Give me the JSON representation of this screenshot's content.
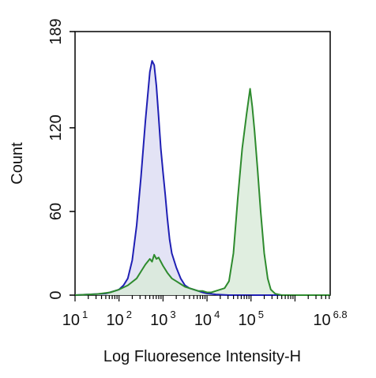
{
  "chart_data": {
    "type": "area",
    "xlabel": "Log Fluoresence Intensity-H",
    "ylabel": "Count",
    "x_scale": "log10",
    "xlim": [
      1,
      6.8
    ],
    "ylim": [
      0,
      189
    ],
    "y_ticks": [
      {
        "value": 0,
        "label": "0"
      },
      {
        "value": 60,
        "label": "60"
      },
      {
        "value": 120,
        "label": "120"
      },
      {
        "value": 189,
        "label": "189"
      }
    ],
    "x_ticks": [
      {
        "value": 1,
        "base": "10",
        "exp": "1"
      },
      {
        "value": 2,
        "base": "10",
        "exp": "2"
      },
      {
        "value": 3,
        "base": "10",
        "exp": "3"
      },
      {
        "value": 4,
        "base": "10",
        "exp": "4"
      },
      {
        "value": 5,
        "base": "10",
        "exp": "5"
      },
      {
        "value": 6.8,
        "base": "10",
        "exp": "6.8"
      }
    ],
    "grid": false,
    "legend": "none",
    "series": [
      {
        "color": "#1f1fb4",
        "fill": "#dcdcf2",
        "points": [
          [
            1.0,
            0
          ],
          [
            1.3,
            0.5
          ],
          [
            1.5,
            0.8
          ],
          [
            1.7,
            1.2
          ],
          [
            1.9,
            3
          ],
          [
            2.0,
            4
          ],
          [
            2.1,
            7
          ],
          [
            2.2,
            12
          ],
          [
            2.3,
            25
          ],
          [
            2.4,
            50
          ],
          [
            2.5,
            85
          ],
          [
            2.6,
            125
          ],
          [
            2.7,
            160
          ],
          [
            2.75,
            168
          ],
          [
            2.8,
            165
          ],
          [
            2.85,
            150
          ],
          [
            2.9,
            128
          ],
          [
            2.95,
            105
          ],
          [
            3.0,
            88
          ],
          [
            3.05,
            72
          ],
          [
            3.1,
            55
          ],
          [
            3.15,
            40
          ],
          [
            3.2,
            30
          ],
          [
            3.3,
            20
          ],
          [
            3.4,
            12
          ],
          [
            3.5,
            7
          ],
          [
            3.6,
            5
          ],
          [
            3.7,
            4
          ],
          [
            3.8,
            3
          ],
          [
            3.9,
            2
          ],
          [
            4.0,
            1.2
          ],
          [
            4.2,
            0.5
          ],
          [
            4.5,
            0
          ],
          [
            5.0,
            0
          ],
          [
            6.8,
            0
          ]
        ]
      },
      {
        "color": "#2e8b2e",
        "fill": "#d8ead8",
        "points": [
          [
            1.0,
            0
          ],
          [
            1.5,
            0.8
          ],
          [
            1.8,
            2
          ],
          [
            2.0,
            4
          ],
          [
            2.2,
            7
          ],
          [
            2.4,
            12
          ],
          [
            2.5,
            17
          ],
          [
            2.6,
            22
          ],
          [
            2.7,
            26
          ],
          [
            2.75,
            24
          ],
          [
            2.8,
            29
          ],
          [
            2.85,
            26
          ],
          [
            2.9,
            27
          ],
          [
            3.0,
            21
          ],
          [
            3.1,
            16
          ],
          [
            3.2,
            12
          ],
          [
            3.3,
            10
          ],
          [
            3.4,
            8
          ],
          [
            3.5,
            6
          ],
          [
            3.6,
            5
          ],
          [
            3.7,
            4
          ],
          [
            3.8,
            3
          ],
          [
            3.9,
            3
          ],
          [
            4.0,
            2
          ],
          [
            4.1,
            2
          ],
          [
            4.2,
            3
          ],
          [
            4.3,
            4
          ],
          [
            4.4,
            5
          ],
          [
            4.5,
            10
          ],
          [
            4.6,
            30
          ],
          [
            4.7,
            70
          ],
          [
            4.8,
            105
          ],
          [
            4.9,
            130
          ],
          [
            4.98,
            148
          ],
          [
            5.03,
            135
          ],
          [
            5.08,
            118
          ],
          [
            5.15,
            90
          ],
          [
            5.22,
            60
          ],
          [
            5.3,
            30
          ],
          [
            5.38,
            12
          ],
          [
            5.45,
            4
          ],
          [
            5.55,
            1
          ],
          [
            5.7,
            0
          ],
          [
            6.8,
            0
          ]
        ]
      }
    ]
  }
}
